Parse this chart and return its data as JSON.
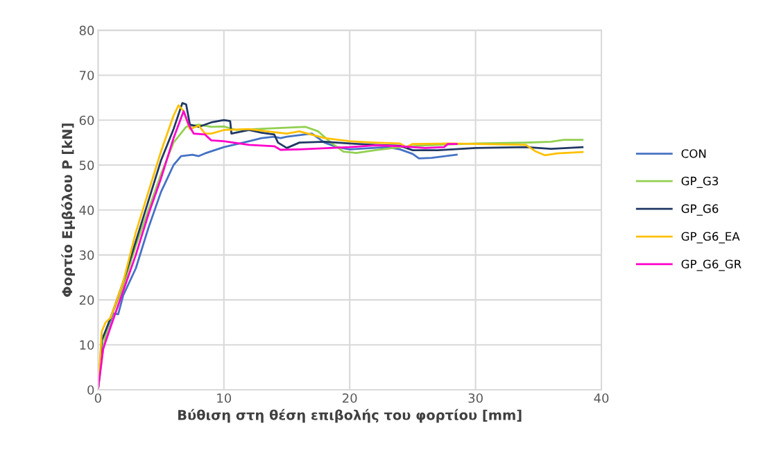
{
  "chart_data": {
    "type": "line",
    "xlabel": "Βύθιση στη θέση επιβολής του φορτίου [mm]",
    "ylabel": "Φορτίο Εμβόλου P [kN]",
    "xlim": [
      0,
      40
    ],
    "xticks": [
      0,
      10,
      20,
      30,
      40
    ],
    "ylim": [
      0,
      80
    ],
    "yticks": [
      0,
      10,
      20,
      30,
      40,
      50,
      60,
      70,
      80
    ],
    "grid": true,
    "legend": "right",
    "marker": "none",
    "line_style": "solid",
    "series": [
      {
        "name": "CON",
        "color": "#4472c4",
        "x": [
          0,
          0.3,
          0.7,
          1.2,
          1.6,
          2,
          3,
          4,
          5,
          6,
          6.6,
          7.5,
          8,
          8.5,
          10,
          12,
          13,
          14,
          14.5,
          15,
          17,
          18,
          19,
          20,
          23,
          24,
          25,
          25.5,
          26.5,
          28.5
        ],
        "values": [
          0,
          8,
          13,
          17,
          16.8,
          21,
          27,
          36,
          44,
          50,
          52,
          52.3,
          52,
          52.6,
          54,
          55.3,
          56,
          56.3,
          56,
          56.3,
          57,
          55,
          54,
          53.5,
          54,
          53.5,
          52.5,
          51.5,
          51.6,
          52.3
        ]
      },
      {
        "name": "GP_G3",
        "color": "#92d050",
        "x": [
          0,
          0.5,
          1,
          2,
          3,
          4,
          5,
          6,
          7,
          8,
          9,
          10,
          11,
          14,
          16.5,
          17.5,
          18.5,
          19.5,
          20.5,
          22,
          24,
          26,
          30,
          34,
          36,
          37,
          38.5
        ],
        "values": [
          0,
          11,
          16,
          23,
          32,
          40,
          48,
          55,
          58.5,
          59,
          58.5,
          58.6,
          57.8,
          58.2,
          58.5,
          57.5,
          55,
          53,
          52.7,
          53.3,
          54,
          54.4,
          54.8,
          55,
          55.2,
          55.6,
          55.6
        ]
      },
      {
        "name": "GP_G6",
        "color": "#203864",
        "x": [
          0,
          0.3,
          1,
          2,
          3,
          4,
          5,
          6,
          6.7,
          7,
          7.3,
          8,
          9,
          10,
          10.5,
          10.6,
          12,
          13,
          14,
          14.3,
          15,
          16,
          18,
          20,
          22,
          24,
          25,
          27,
          30,
          34,
          36,
          38.5
        ],
        "values": [
          0,
          11,
          16,
          24,
          33,
          42,
          51,
          58,
          63.8,
          63.5,
          59,
          58.5,
          59.5,
          60,
          59.8,
          57,
          57.8,
          57.2,
          56.8,
          55,
          53.8,
          55,
          55.2,
          54.8,
          54.5,
          54.3,
          53.3,
          53.3,
          53.8,
          54,
          53.6,
          54
        ]
      },
      {
        "name": "GP_G6_EA",
        "color": "#ffc000",
        "x": [
          0,
          0.3,
          0.6,
          1,
          1.5,
          2,
          3,
          4,
          5,
          6,
          6.4,
          6.8,
          7.3,
          8,
          8.5,
          9,
          10,
          12,
          14,
          15,
          16,
          18,
          20,
          22,
          24,
          24.5,
          25,
          28,
          34,
          34.8,
          35.5,
          36.5,
          38.5
        ],
        "values": [
          0,
          13,
          15,
          16,
          20,
          24,
          35,
          44,
          53,
          61,
          63.3,
          62,
          58,
          58.8,
          57,
          57,
          57.8,
          58,
          57.3,
          57,
          57.5,
          56,
          55.3,
          55,
          54.8,
          54,
          54.7,
          54.8,
          54.5,
          53,
          52.2,
          52.6,
          52.9
        ]
      },
      {
        "name": "GP_G6_GR",
        "color": "#ff00cc",
        "x": [
          0,
          0.4,
          1,
          2,
          3,
          4,
          5,
          6,
          6.8,
          7.2,
          7.6,
          8.5,
          9,
          10,
          12,
          14,
          14.5,
          16,
          20,
          22,
          24,
          25,
          26,
          27.5,
          27.8,
          28.5
        ],
        "values": [
          0,
          9,
          14,
          22,
          30,
          39,
          47,
          56,
          62,
          59,
          57,
          56.8,
          55.5,
          55.3,
          54.5,
          54.2,
          53.4,
          53.5,
          54,
          54.4,
          54.2,
          54,
          53.8,
          54,
          54.7,
          54.7
        ]
      }
    ]
  }
}
